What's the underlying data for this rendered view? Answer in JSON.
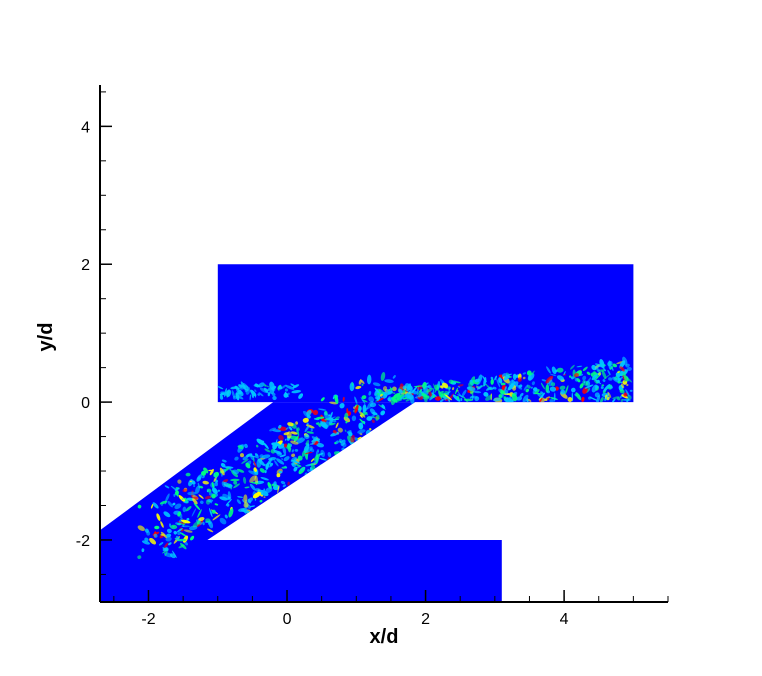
{
  "chart_data": {
    "type": "heatmap",
    "xlabel": "x/d",
    "ylabel": "y/d",
    "xlim": [
      -2.7,
      5.5
    ],
    "ylim": [
      -2.9,
      4.6
    ],
    "x_ticks": [
      {
        "value": -2,
        "label": "-2"
      },
      {
        "value": 0,
        "label": "0"
      },
      {
        "value": 2,
        "label": "2"
      },
      {
        "value": 4,
        "label": "4"
      }
    ],
    "y_ticks": [
      {
        "value": -2,
        "label": "-2"
      },
      {
        "value": 0,
        "label": "0"
      },
      {
        "value": 2,
        "label": "2"
      },
      {
        "value": 4,
        "label": "4"
      }
    ],
    "x_minor_step": 0.5,
    "y_minor_step": 0.5,
    "regions": [
      {
        "name": "upper-channel",
        "polygon": [
          [
            -1,
            0
          ],
          [
            5,
            0
          ],
          [
            5,
            2
          ],
          [
            -1,
            2
          ]
        ]
      },
      {
        "name": "lower-channel",
        "polygon": [
          [
            -2.7,
            -2
          ],
          [
            3.1,
            -2
          ],
          [
            3.1,
            -2.9
          ],
          [
            -2.7,
            -2.9
          ]
        ]
      },
      {
        "name": "inclined-jet",
        "polygon": [
          [
            -2.7,
            -1.86
          ],
          [
            -0.2,
            0
          ],
          [
            1.85,
            0
          ],
          [
            -1.15,
            -2
          ],
          [
            -2.7,
            -2
          ]
        ]
      }
    ],
    "colormap": [
      "#0000ff",
      "#00c8ff",
      "#00ff80",
      "#ffff00",
      "#ff0000"
    ],
    "background_color": "#0000ff"
  }
}
